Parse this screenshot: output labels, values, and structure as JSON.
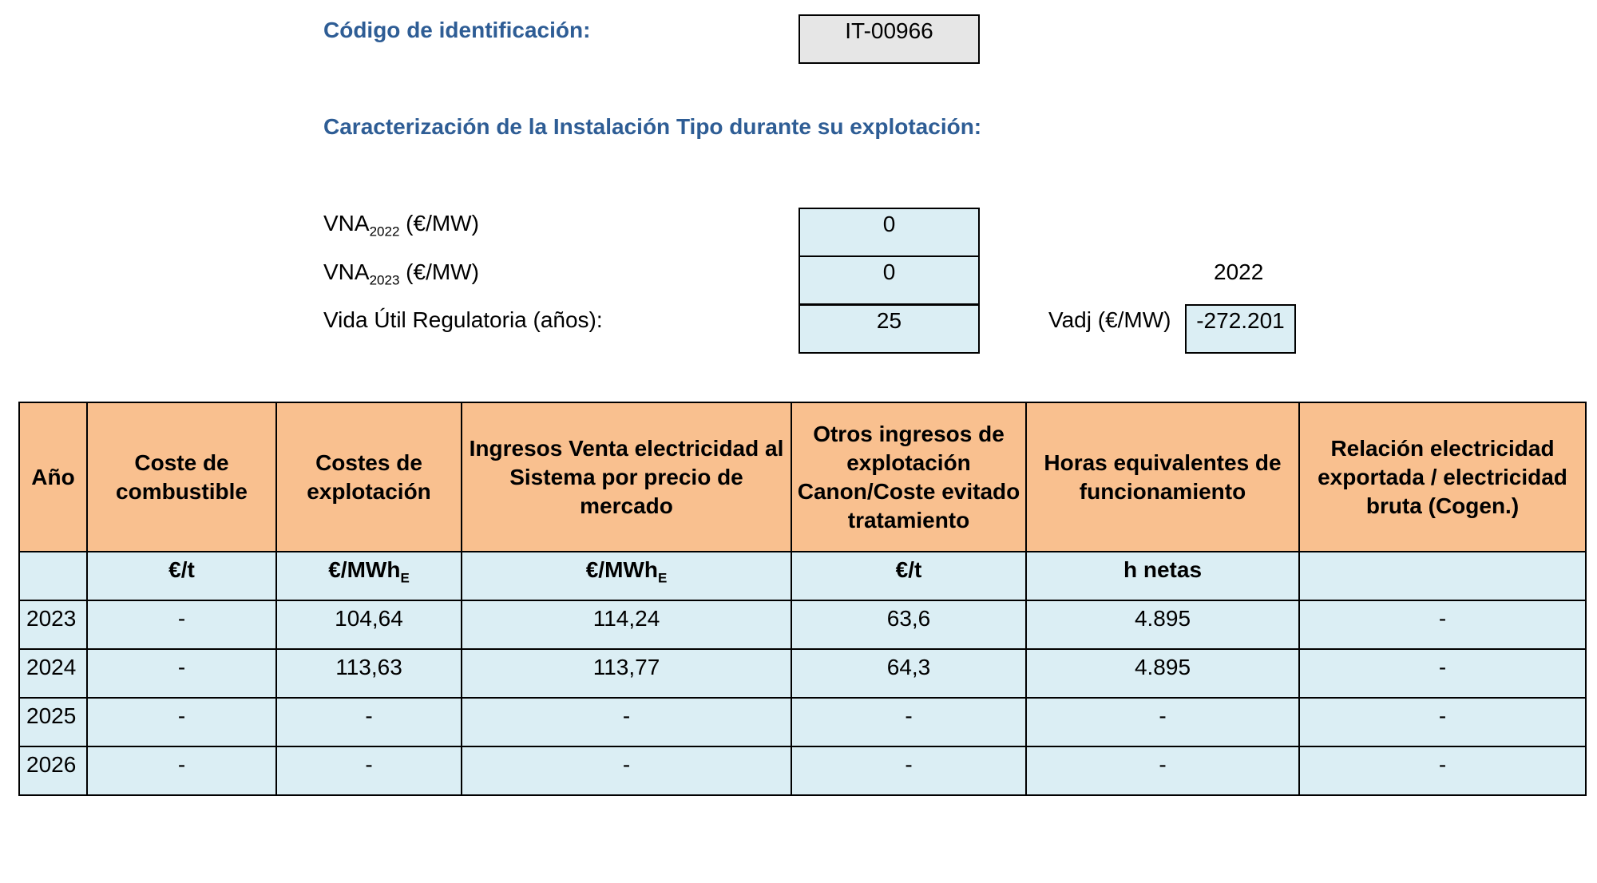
{
  "header": {
    "id_label": "Código de identificación:",
    "id_value": "IT-00966",
    "section_title": "Caracterización de la Instalación Tipo durante su explotación:"
  },
  "params": {
    "vna2022": {
      "prefix": "VNA",
      "sub": "2022",
      "suffix": " (€/MW)",
      "value": "0"
    },
    "vna2023": {
      "prefix": "VNA",
      "sub": "2023",
      "suffix": " (€/MW)",
      "value": "0"
    },
    "vida_label": "Vida Útil Regulatoria (años):",
    "vida_value": "25",
    "year_ref": "2022",
    "vadj_label": "Vadj (€/MW)",
    "vadj_value": "-272.201"
  },
  "table": {
    "headers": [
      "Año",
      "Coste de combustible",
      "Costes de explotación",
      "Ingresos Venta electricidad al Sistema por precio de mercado",
      "Otros ingresos de explotación Canon/Coste evitado tratamiento",
      "Horas equivalentes de funcionamiento",
      "Relación electricidad exportada / electricidad bruta (Cogen.)"
    ],
    "units": {
      "combustible": "€/t",
      "explotacion": {
        "base": "€/MWh",
        "sub": "E"
      },
      "ingresos": {
        "base": "€/MWh",
        "sub": "E"
      },
      "otros": "€/t",
      "horas": "h netas"
    },
    "rows": [
      {
        "year": "2023",
        "combustible": "-",
        "explotacion": "104,64",
        "ingresos": "114,24",
        "otros": "63,6",
        "horas": "4.895",
        "relacion": "-"
      },
      {
        "year": "2024",
        "combustible": "-",
        "explotacion": "113,63",
        "ingresos": "113,77",
        "otros": "64,3",
        "horas": "4.895",
        "relacion": "-"
      },
      {
        "year": "2025",
        "combustible": "-",
        "explotacion": "-",
        "ingresos": "-",
        "otros": "-",
        "horas": "-",
        "relacion": "-"
      },
      {
        "year": "2026",
        "combustible": "-",
        "explotacion": "-",
        "ingresos": "-",
        "otros": "-",
        "horas": "-",
        "relacion": "-"
      }
    ]
  },
  "colors": {
    "heading": "#2e5d95",
    "header_fill": "#f9c08f",
    "cell_fill": "#dbeef4",
    "id_fill": "#e6e6e6"
  }
}
